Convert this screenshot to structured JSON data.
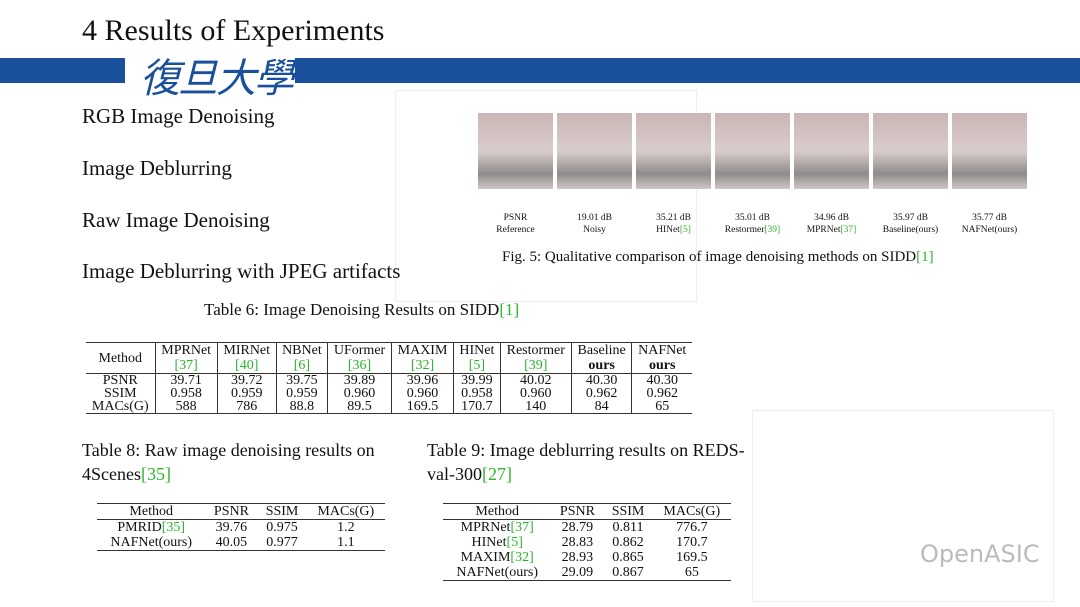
{
  "header": {
    "title": "4 Results of Experiments",
    "logo": "復旦大學"
  },
  "topics": [
    "RGB Image Denoising",
    "Image Deblurring",
    "Raw Image Denoising",
    "Image Deblurring with JPEG artifacts"
  ],
  "figure": {
    "panels": [
      {
        "score": "PSNR",
        "method": "Reference"
      },
      {
        "score": "19.01 dB",
        "method": "Noisy"
      },
      {
        "score": "35.21 dB",
        "method": "HINet",
        "ref": "[5]"
      },
      {
        "score": "35.01 dB",
        "method": "Restormer",
        "ref": "[39]"
      },
      {
        "score": "34.96 dB",
        "method": "MPRNet",
        "ref": "[37]"
      },
      {
        "score": "35.97 dB",
        "method": "Baseline(ours)"
      },
      {
        "score": "35.77 dB",
        "method": "NAFNet(ours)"
      }
    ],
    "caption": "Fig. 5: Qualitative comparison of image denoising methods on SIDD",
    "caption_ref": "[1]"
  },
  "table6": {
    "caption": "Table 6: Image Denoising Results on SIDD",
    "caption_ref": "[1]",
    "header": [
      "Method",
      {
        "name": "MPRNet",
        "ref": "[37]"
      },
      {
        "name": "MIRNet",
        "ref": "[40]"
      },
      {
        "name": "NBNet",
        "ref": "[6]"
      },
      {
        "name": "UFormer",
        "ref": "[36]"
      },
      {
        "name": "MAXIM",
        "ref": "[32]"
      },
      {
        "name": "HINet",
        "ref": "[5]"
      },
      {
        "name": "Restormer",
        "ref": "[39]"
      },
      {
        "name": "Baseline",
        "sub": "ours"
      },
      {
        "name": "NAFNet",
        "sub": "ours"
      }
    ],
    "rows": [
      [
        "PSNR",
        "39.71",
        "39.72",
        "39.75",
        "39.89",
        "39.96",
        "39.99",
        "40.02",
        "40.30",
        "40.30"
      ],
      [
        "SSIM",
        "0.958",
        "0.959",
        "0.959",
        "0.960",
        "0.960",
        "0.958",
        "0.960",
        "0.962",
        "0.962"
      ],
      [
        "MACs(G)",
        "588",
        "786",
        "88.8",
        "89.5",
        "169.5",
        "170.7",
        "140",
        "84",
        "65"
      ]
    ]
  },
  "table8": {
    "caption": "Table 8: Raw image denoising results on 4Scenes",
    "caption_ref": "[35]",
    "header": [
      "Method",
      "PSNR",
      "SSIM",
      "MACs(G)"
    ],
    "rows": [
      [
        {
          "name": "PMRID",
          "ref": "[35]"
        },
        "39.76",
        "0.975",
        "1.2"
      ],
      [
        "NAFNet(ours)",
        "40.05",
        "0.977",
        "1.1"
      ]
    ]
  },
  "table9": {
    "caption": "Table 9: Image deblurring results on REDS-val-300",
    "caption_ref": "[27]",
    "header": [
      "Method",
      "PSNR",
      "SSIM",
      "MACs(G)"
    ],
    "rows": [
      [
        {
          "name": "MPRNet",
          "ref": "[37]"
        },
        "28.79",
        "0.811",
        "776.7"
      ],
      [
        {
          "name": "HINet",
          "ref": "[5]"
        },
        "28.83",
        "0.862",
        "170.7"
      ],
      [
        {
          "name": "MAXIM",
          "ref": "[32]"
        },
        "28.93",
        "0.865",
        "169.5"
      ],
      [
        "NAFNet(ours)",
        "29.09",
        "0.867",
        "65"
      ]
    ]
  },
  "watermark": "OpenASIC"
}
